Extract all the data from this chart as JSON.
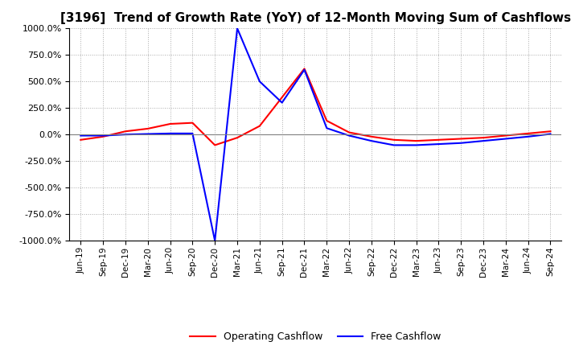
{
  "title": "[3196]  Trend of Growth Rate (YoY) of 12-Month Moving Sum of Cashflows",
  "title_fontsize": 11,
  "ylim": [
    -1000,
    1000
  ],
  "yticks": [
    -1000,
    -750,
    -500,
    -250,
    0,
    250,
    500,
    750,
    1000
  ],
  "background_color": "#ffffff",
  "grid_color": "#aaaaaa",
  "legend_labels": [
    "Operating Cashflow",
    "Free Cashflow"
  ],
  "line_colors": [
    "#ff0000",
    "#0000ff"
  ],
  "x_labels": [
    "Jun-19",
    "Sep-19",
    "Dec-19",
    "Mar-20",
    "Jun-20",
    "Sep-20",
    "Dec-20",
    "Mar-21",
    "Jun-21",
    "Sep-21",
    "Dec-21",
    "Mar-22",
    "Jun-22",
    "Sep-22",
    "Dec-22",
    "Mar-23",
    "Jun-23",
    "Sep-23",
    "Dec-23",
    "Mar-24",
    "Jun-24",
    "Sep-24"
  ],
  "operating_cashflow": [
    -50,
    -20,
    30,
    55,
    100,
    110,
    -100,
    -30,
    80,
    350,
    620,
    130,
    20,
    -20,
    -50,
    -60,
    -50,
    -40,
    -30,
    -10,
    10,
    30
  ],
  "free_cashflow": [
    -10,
    -10,
    0,
    5,
    10,
    10,
    -1000,
    1000,
    500,
    300,
    610,
    60,
    -10,
    -60,
    -100,
    -100,
    -90,
    -80,
    -60,
    -40,
    -20,
    5
  ]
}
